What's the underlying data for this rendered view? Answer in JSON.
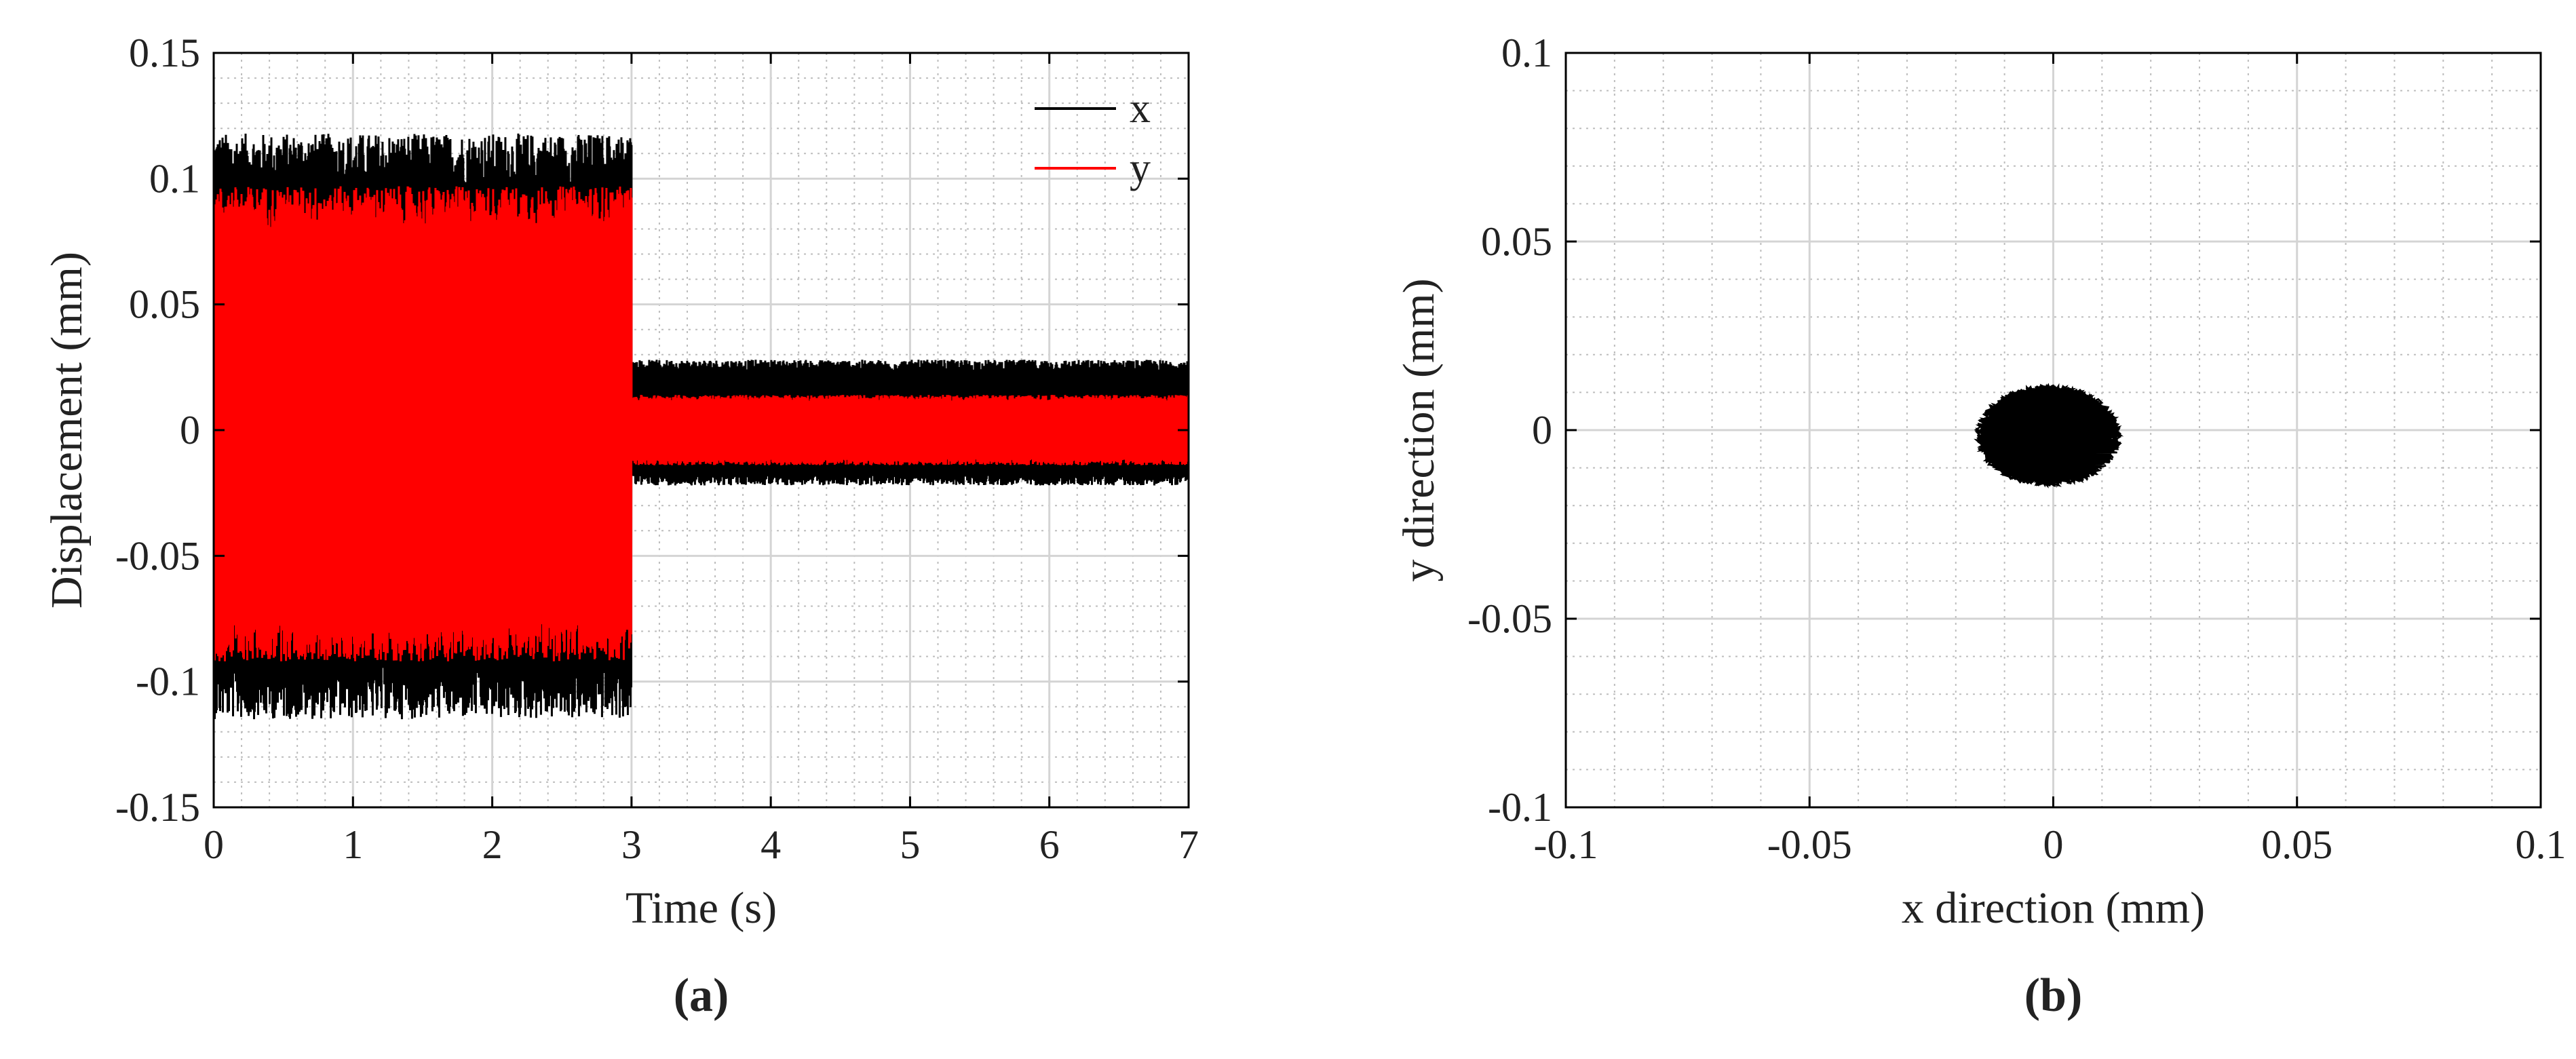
{
  "chart_data": [
    {
      "type": "line",
      "panel_label": "(a)",
      "xlabel": "Time (s)",
      "ylabel": "Displacement (mm)",
      "xlim": [
        0,
        7
      ],
      "ylim": [
        -0.15,
        0.15
      ],
      "xticks": [
        "0",
        "1",
        "2",
        "3",
        "4",
        "5",
        "6",
        "7"
      ],
      "yticks": [
        "0.15",
        "0.1",
        "0.05",
        "0",
        "-0.05",
        "-0.1",
        "-0.15"
      ],
      "grid": true,
      "legend_position": "top-right",
      "series": [
        {
          "name": "x",
          "color": "#000000",
          "segments": [
            {
              "t_start": 0,
              "t_end": 3,
              "min": -0.115,
              "max": 0.118
            },
            {
              "t_start": 3,
              "t_end": 7,
              "min": -0.022,
              "max": 0.028
            }
          ]
        },
        {
          "name": "y",
          "color": "#ff0000",
          "segments": [
            {
              "t_start": 0,
              "t_end": 3,
              "min": -0.092,
              "max": 0.097
            },
            {
              "t_start": 3,
              "t_end": 7,
              "min": -0.014,
              "max": 0.014
            }
          ]
        }
      ]
    },
    {
      "type": "scatter",
      "panel_label": "(b)",
      "xlabel": "x direction (mm)",
      "ylabel": "y direction (mm)",
      "xlim": [
        -0.1,
        0.1
      ],
      "ylim": [
        -0.1,
        0.1
      ],
      "xticks": [
        "-0.1",
        "-0.05",
        "0",
        "0.05",
        "0.1"
      ],
      "yticks": [
        "0.1",
        "0.05",
        "0",
        "-0.05",
        "-0.1"
      ],
      "grid": true,
      "series": [
        {
          "color": "#000000",
          "x_range": [
            -0.016,
            0.014
          ],
          "y_range": [
            -0.015,
            0.012
          ]
        }
      ]
    }
  ]
}
